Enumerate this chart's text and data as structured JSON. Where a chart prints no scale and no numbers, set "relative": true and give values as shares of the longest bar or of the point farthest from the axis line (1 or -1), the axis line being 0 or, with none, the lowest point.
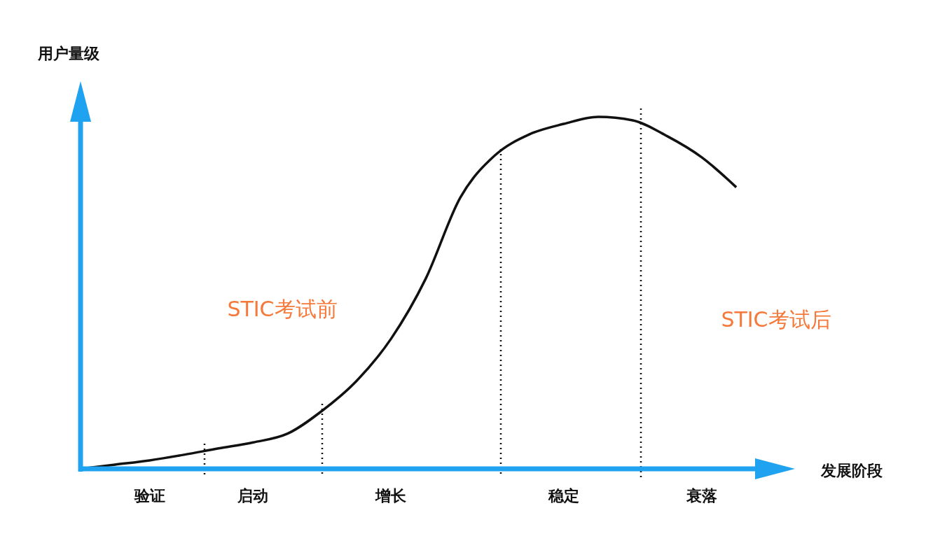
{
  "chart_data": {
    "type": "line",
    "relative": true,
    "xlabel": "发展阶段",
    "ylabel": "用户量级",
    "marker": "none",
    "categories": [
      null,
      null,
      "验证",
      null,
      null,
      "启动",
      null,
      null,
      null,
      "增长",
      null,
      null,
      null,
      null,
      "稳定",
      null,
      null,
      null,
      "衰落",
      null
    ],
    "series": [
      {
        "color": "#111111",
        "values": [
          0.0,
          0.012,
          0.024,
          0.04,
          0.058,
          0.075,
          0.1,
          0.165,
          0.25,
          0.37,
          0.54,
          0.77,
          0.89,
          0.95,
          0.98,
          1.0,
          0.99,
          0.945,
          0.885,
          0.8
        ]
      }
    ],
    "annotations": [
      "STIC考试前",
      "STIC考试后"
    ]
  }
}
